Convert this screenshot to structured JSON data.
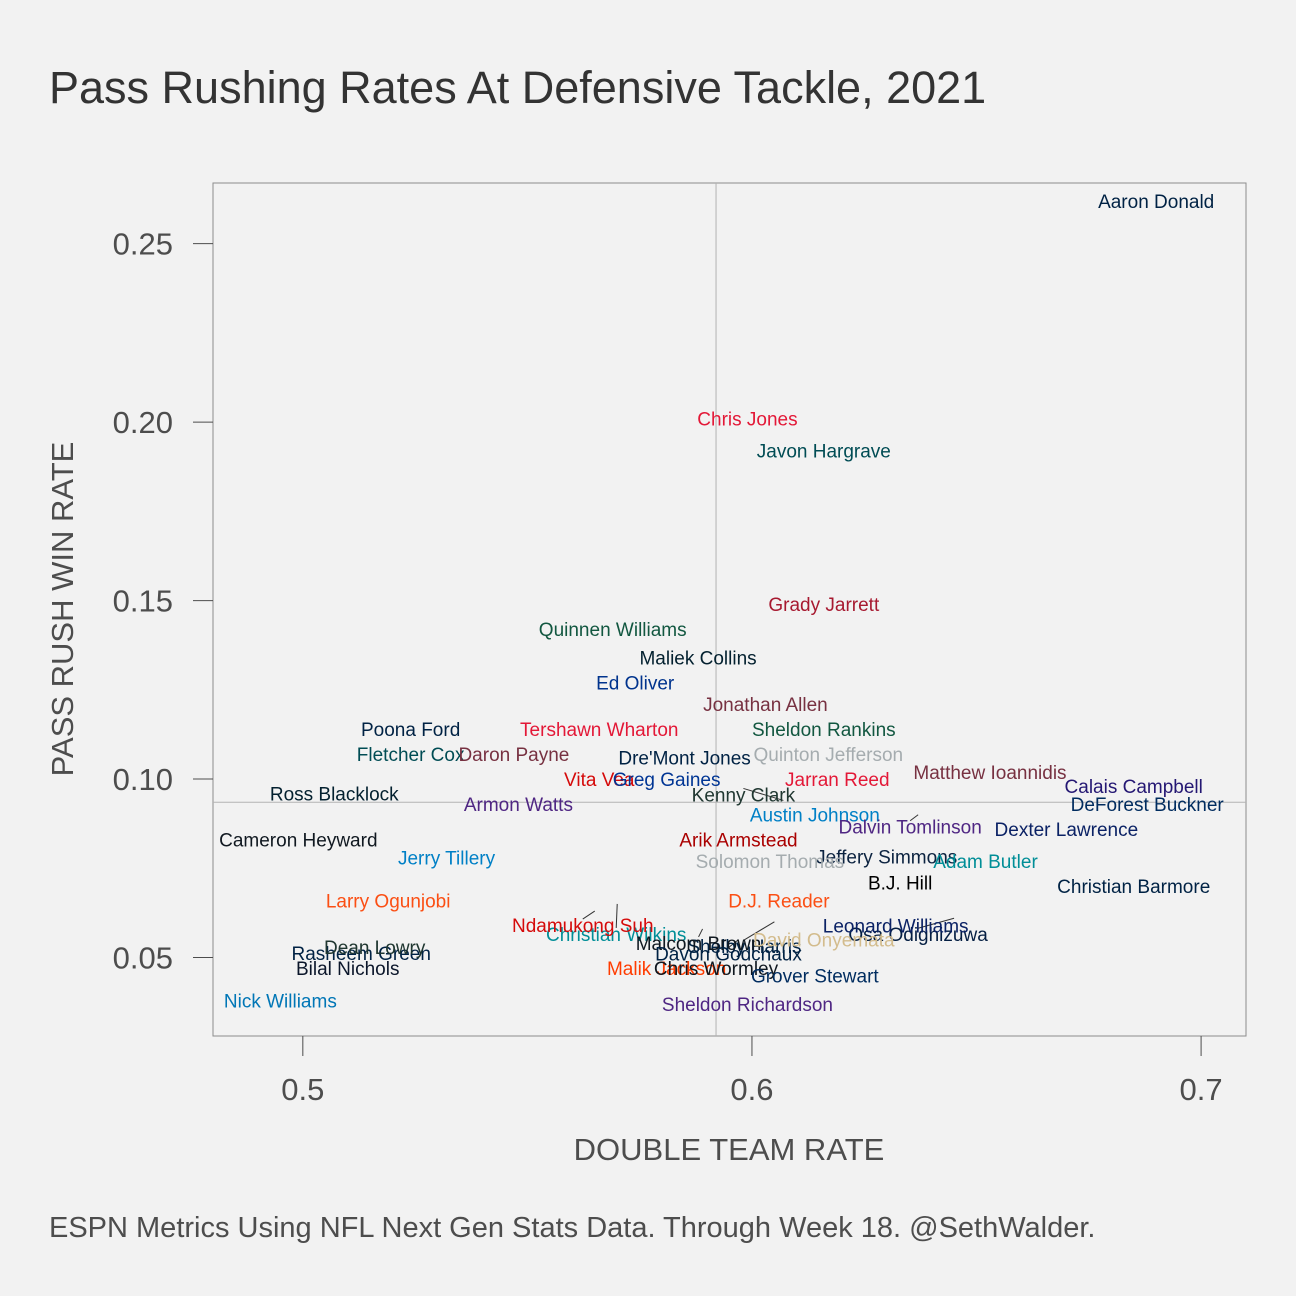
{
  "title": "Pass Rushing Rates At Defensive Tackle, 2021",
  "caption": "ESPN Metrics Using NFL Next Gen Stats Data. Through Week 18. @SethWalder.",
  "chart_data": {
    "type": "scatter",
    "xlabel": "DOUBLE TEAM RATE",
    "ylabel": "PASS RUSH WIN RATE",
    "xlim": [
      0.48,
      0.71
    ],
    "ylim": [
      0.028,
      0.267
    ],
    "x_ticks": [
      0.5,
      0.6,
      0.7
    ],
    "x_tick_labels": [
      "0.5",
      "0.6",
      "0.7"
    ],
    "y_ticks": [
      0.05,
      0.1,
      0.15,
      0.2,
      0.25
    ],
    "y_tick_labels": [
      "0.05",
      "0.10",
      "0.15",
      "0.20",
      "0.25"
    ],
    "reference_lines": {
      "x": 0.592,
      "y": 0.0935
    },
    "grid": false,
    "points": [
      {
        "name": "Aaron Donald",
        "x": 0.69,
        "y": 0.262,
        "color": "#002244"
      },
      {
        "name": "Chris Jones",
        "x": 0.599,
        "y": 0.201,
        "color": "#E31837"
      },
      {
        "name": "Javon Hargrave",
        "x": 0.616,
        "y": 0.192,
        "color": "#004C54"
      },
      {
        "name": "Grady Jarrett",
        "x": 0.616,
        "y": 0.149,
        "color": "#A71930"
      },
      {
        "name": "Quinnen Williams",
        "x": 0.569,
        "y": 0.142,
        "color": "#125740"
      },
      {
        "name": "Maliek Collins",
        "x": 0.588,
        "y": 0.134,
        "color": "#03202F"
      },
      {
        "name": "Ed Oliver",
        "x": 0.574,
        "y": 0.127,
        "color": "#00338D"
      },
      {
        "name": "Jonathan Allen",
        "x": 0.603,
        "y": 0.121,
        "color": "#773141"
      },
      {
        "name": "Tershawn Wharton",
        "x": 0.566,
        "y": 0.114,
        "color": "#E31837"
      },
      {
        "name": "Sheldon Rankins",
        "x": 0.616,
        "y": 0.114,
        "color": "#125740"
      },
      {
        "name": "Poona Ford",
        "x": 0.524,
        "y": 0.114,
        "color": "#002244"
      },
      {
        "name": "Fletcher Cox",
        "x": 0.524,
        "y": 0.107,
        "color": "#004C54"
      },
      {
        "name": "Daron Payne",
        "x": 0.547,
        "y": 0.107,
        "color": "#773141"
      },
      {
        "name": "Dre'Mont Jones",
        "x": 0.585,
        "y": 0.106,
        "color": "#002244"
      },
      {
        "name": "Quinton Jefferson",
        "x": 0.617,
        "y": 0.107,
        "color": "#A5ACAF"
      },
      {
        "name": "Matthew Ioannidis",
        "x": 0.653,
        "y": 0.102,
        "color": "#773141"
      },
      {
        "name": "Vita Vea",
        "x": 0.566,
        "y": 0.1,
        "color": "#D50A0A"
      },
      {
        "name": "Greg Gaines",
        "x": 0.581,
        "y": 0.1,
        "color": "#003594"
      },
      {
        "name": "Jarran Reed",
        "x": 0.619,
        "y": 0.1,
        "color": "#E31837"
      },
      {
        "name": "Calais Campbell",
        "x": 0.685,
        "y": 0.098,
        "color": "#241773"
      },
      {
        "name": "Ross Blacklock",
        "x": 0.507,
        "y": 0.096,
        "color": "#03202F"
      },
      {
        "name": "Kenny Clark",
        "x": 0.607,
        "y": 0.094,
        "color": "#203731"
      },
      {
        "name": "Armon Watts",
        "x": 0.548,
        "y": 0.093,
        "color": "#4F2683"
      },
      {
        "name": "DeForest Buckner",
        "x": 0.688,
        "y": 0.093,
        "color": "#002C5F"
      },
      {
        "name": "Austin Johnson",
        "x": 0.614,
        "y": 0.09,
        "color": "#0080C6"
      },
      {
        "name": "Dalvin Tomlinson",
        "x": 0.637,
        "y": 0.09,
        "color": "#4F2683"
      },
      {
        "name": "Dexter Lawrence",
        "x": 0.67,
        "y": 0.086,
        "color": "#0B2265"
      },
      {
        "name": "Cameron Heyward",
        "x": 0.499,
        "y": 0.083,
        "color": "#101820"
      },
      {
        "name": "Arik Armstead",
        "x": 0.597,
        "y": 0.083,
        "color": "#AA0000"
      },
      {
        "name": "Jeffery Simmons",
        "x": 0.63,
        "y": 0.08,
        "color": "#0C2340"
      },
      {
        "name": "Jerry Tillery",
        "x": 0.532,
        "y": 0.078,
        "color": "#0080C6"
      },
      {
        "name": "Solomon Thomas",
        "x": 0.604,
        "y": 0.077,
        "color": "#A5ACAF"
      },
      {
        "name": "Adam Butler",
        "x": 0.652,
        "y": 0.077,
        "color": "#008E97"
      },
      {
        "name": "B.J. Hill",
        "x": 0.633,
        "y": 0.071,
        "color": "#000000"
      },
      {
        "name": "Christian Barmore",
        "x": 0.685,
        "y": 0.07,
        "color": "#002244"
      },
      {
        "name": "Larry Ogunjobi",
        "x": 0.519,
        "y": 0.066,
        "color": "#FB4F14"
      },
      {
        "name": "Christian Wilkins",
        "x": 0.57,
        "y": 0.065,
        "color": "#008E97"
      },
      {
        "name": "D.J. Reader",
        "x": 0.606,
        "y": 0.066,
        "color": "#FB4F14"
      },
      {
        "name": "Osa Odighizuwa",
        "x": 0.645,
        "y": 0.061,
        "color": "#041E42"
      },
      {
        "name": "Ndamukong Suh",
        "x": 0.565,
        "y": 0.063,
        "color": "#D50A0A"
      },
      {
        "name": "Shelby Harris",
        "x": 0.605,
        "y": 0.06,
        "color": "#002244"
      },
      {
        "name": "Leonard Williams",
        "x": 0.632,
        "y": 0.059,
        "color": "#0B2265"
      },
      {
        "name": "Rasheem Green",
        "x": 0.513,
        "y": 0.054,
        "color": "#002244"
      },
      {
        "name": "Malcom Brown",
        "x": 0.589,
        "y": 0.058,
        "color": "#101820"
      },
      {
        "name": "Davon Godchaux",
        "x": 0.597,
        "y": 0.055,
        "color": "#002244"
      },
      {
        "name": "David Onyemata",
        "x": 0.616,
        "y": 0.055,
        "color": "#D3BC8D"
      },
      {
        "name": "Dean Lowry",
        "x": 0.516,
        "y": 0.053,
        "color": "#203731"
      },
      {
        "name": "Bilal Nichols",
        "x": 0.51,
        "y": 0.047,
        "color": "#0B162A"
      },
      {
        "name": "Malik Jackson",
        "x": 0.581,
        "y": 0.047,
        "color": "#FF3C00"
      },
      {
        "name": "Chris Wormley",
        "x": 0.592,
        "y": 0.047,
        "color": "#101820"
      },
      {
        "name": "Grover Stewart",
        "x": 0.614,
        "y": 0.045,
        "color": "#002C5F"
      },
      {
        "name": "Nick Williams",
        "x": 0.495,
        "y": 0.038,
        "color": "#0076B6"
      },
      {
        "name": "Sheldon Richardson",
        "x": 0.599,
        "y": 0.037,
        "color": "#4F2683"
      }
    ]
  }
}
